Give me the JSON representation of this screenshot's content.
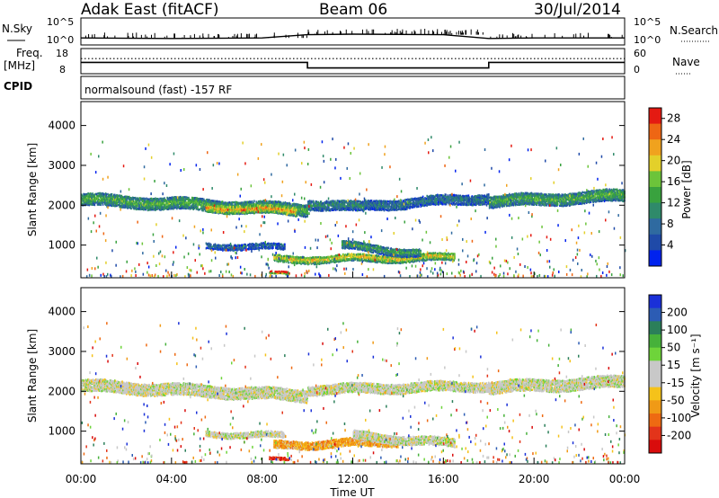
{
  "header": {
    "radar": "Adak East (fitACF)",
    "beam": "Beam 06",
    "date": "30/Jul/2014"
  },
  "top_panels": {
    "nsky_label": "N.Sky",
    "nsky_ticks": [
      "10^5",
      "10^0"
    ],
    "nsearch_label": "N.Search",
    "nsearch_ticks": [
      "10^5",
      "10^0"
    ],
    "freq_label": "Freq.",
    "freq_unit": "[MHz]",
    "freq_ticks": [
      "18",
      "8"
    ],
    "nave_label": "Nave",
    "nave_ticks": [
      "60",
      "0"
    ],
    "cpid_label": "CPID",
    "cpid_text": "normalsound (fast) -157 RF"
  },
  "colors": {
    "power_scale": [
      "#0022ee",
      "#1f4aa8",
      "#2f6aa0",
      "#2f8a6a",
      "#39a23e",
      "#6cc43a",
      "#e3d02a",
      "#f0a21e",
      "#ee6614",
      "#e41a12"
    ],
    "velocity_scale": [
      "#1a30d8",
      "#2c5cb4",
      "#2b7f5a",
      "#46b13a",
      "#6ed43a",
      "#c8c8c8",
      "#c8c8c8",
      "#f5c21a",
      "#f09a16",
      "#ee6a12",
      "#e3341a",
      "#d90c0c"
    ],
    "line": "#000000"
  },
  "chart_data": [
    {
      "type": "line",
      "panel": "N.Sky / N.Search",
      "x": [
        0,
        4,
        8,
        10,
        12,
        16,
        18,
        20,
        24
      ],
      "series": [
        {
          "name": "N.Sky",
          "values": [
            1.3,
            1.2,
            1.3,
            1.9,
            2.0,
            1.9,
            1.2,
            1.3,
            1.3
          ]
        }
      ],
      "y_ticks": [
        "10^0",
        "10^5"
      ],
      "ylim": [
        0,
        5
      ]
    },
    {
      "type": "line",
      "panel": "Freq. / Nave",
      "x": [
        0,
        10,
        10,
        18,
        18,
        24
      ],
      "series": [
        {
          "name": "Freq.",
          "values": [
            12.5,
            12.5,
            10.3,
            10.3,
            12.5,
            12.5
          ]
        },
        {
          "name": "Nave",
          "values": [
            14,
            14,
            14,
            14,
            14,
            14
          ]
        }
      ],
      "y_ticks": [
        "8",
        "18"
      ],
      "ylim": [
        8,
        18
      ]
    },
    {
      "type": "heatmap",
      "panel": "Power",
      "ylabel": "Slant Range [km]",
      "xlabel": "Time UT",
      "x_ticks": [
        "00:00",
        "04:00",
        "08:00",
        "12:00",
        "16:00",
        "20:00",
        "00:00"
      ],
      "xlim": [
        0,
        24
      ],
      "y_ticks": [
        1000,
        2000,
        3000,
        4000
      ],
      "ylim": [
        180,
        4600
      ],
      "colorbar_label": "Power [dB]",
      "colorbar_ticks": [
        4,
        8,
        12,
        16,
        20,
        24,
        28
      ],
      "colorbar_range": [
        0,
        30
      ],
      "bands": [
        {
          "t0": 0.0,
          "t1": 10.0,
          "r_start": 2150,
          "r_end": 1900,
          "thick": 300,
          "level": 0.35
        },
        {
          "t0": 5.5,
          "t1": 9.5,
          "r_start": 1950,
          "r_end": 1850,
          "thick": 200,
          "level": 0.6
        },
        {
          "t0": 10.0,
          "t1": 12.5,
          "r_start": 2050,
          "r_end": 1950,
          "thick": 250,
          "level": 0.25
        },
        {
          "t0": 12.5,
          "t1": 18.0,
          "r_start": 2000,
          "r_end": 2200,
          "thick": 250,
          "level": 0.2
        },
        {
          "t0": 18.0,
          "t1": 24.0,
          "r_start": 2100,
          "r_end": 2250,
          "thick": 300,
          "level": 0.35
        },
        {
          "t0": 8.5,
          "t1": 16.5,
          "r_start": 650,
          "r_end": 700,
          "thick": 180,
          "level": 0.55
        },
        {
          "t0": 11.5,
          "t1": 15.0,
          "r_start": 1000,
          "r_end": 800,
          "thick": 200,
          "level": 0.3
        },
        {
          "t0": 5.5,
          "t1": 9.0,
          "r_start": 1000,
          "r_end": 950,
          "thick": 150,
          "level": 0.15
        },
        {
          "t0": 8.3,
          "t1": 9.2,
          "r_start": 300,
          "r_end": 300,
          "thick": 80,
          "level": 0.95
        }
      ]
    },
    {
      "type": "heatmap",
      "panel": "Velocity",
      "ylabel": "Slant Range [km]",
      "xlabel": "Time UT",
      "x_ticks": [
        "00:00",
        "04:00",
        "08:00",
        "12:00",
        "16:00",
        "20:00",
        "00:00"
      ],
      "xlim": [
        0,
        24
      ],
      "y_ticks": [
        1000,
        2000,
        3000,
        4000
      ],
      "ylim": [
        180,
        4600
      ],
      "colorbar_label": "Velocity [m s⁻¹]",
      "colorbar_ticks": [
        200,
        100,
        50,
        15,
        -15,
        -50,
        -100,
        -200
      ],
      "colorbar_range": [
        -250,
        250
      ],
      "bands": [
        {
          "t0": 0.0,
          "t1": 10.0,
          "r_start": 2150,
          "r_end": 1900,
          "thick": 300,
          "level": 0.5
        },
        {
          "t0": 10.0,
          "t1": 18.0,
          "r_start": 2050,
          "r_end": 2150,
          "thick": 250,
          "level": 0.5
        },
        {
          "t0": 18.0,
          "t1": 24.0,
          "r_start": 2100,
          "r_end": 2250,
          "thick": 300,
          "level": 0.5
        },
        {
          "t0": 8.5,
          "t1": 14.0,
          "r_start": 650,
          "r_end": 750,
          "thick": 200,
          "level": 0.7
        },
        {
          "t0": 12.0,
          "t1": 16.5,
          "r_start": 900,
          "r_end": 700,
          "thick": 220,
          "level": 0.5
        },
        {
          "t0": 5.5,
          "t1": 9.0,
          "r_start": 950,
          "r_end": 900,
          "thick": 150,
          "level": 0.5
        },
        {
          "t0": 8.3,
          "t1": 9.2,
          "r_start": 300,
          "r_end": 300,
          "thick": 80,
          "level": 0.92
        }
      ]
    }
  ]
}
